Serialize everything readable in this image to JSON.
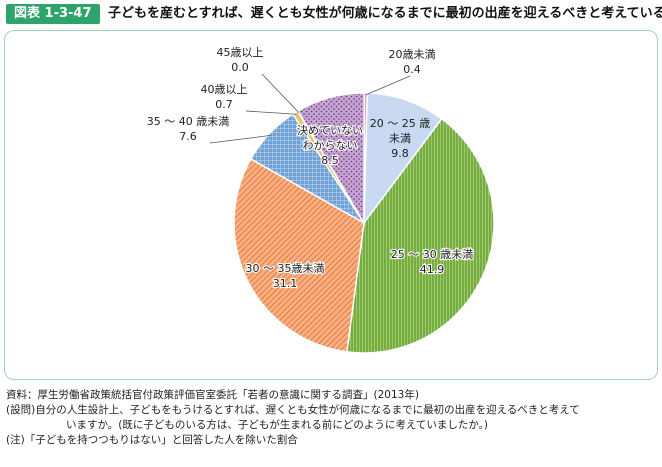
{
  "figure": {
    "tag": "図表 1-3-47",
    "title": "子どもを産むとすれば、遅くとも女性が何歳になるまでに最初の出産を迎えるべきと考えているか"
  },
  "chart_data": {
    "type": "pie",
    "title": "",
    "unit": "%",
    "slices": [
      {
        "label": "20歳未満",
        "value": 0.4,
        "value_text": "0.4",
        "color": "#e9a0b8",
        "pattern": "solid"
      },
      {
        "label": "20 ～ 25 歳未満",
        "value": 9.8,
        "value_text": "9.8",
        "color": "#c9d9f2",
        "pattern": "solid"
      },
      {
        "label": "25 ～ 30 歳未満",
        "value": 41.9,
        "value_text": "41.9",
        "color": "#7cb342",
        "pattern": "vertical-lines"
      },
      {
        "label": "30 ～ 35歳未満",
        "value": 31.1,
        "value_text": "31.1",
        "color": "#f39a5f",
        "pattern": "diagonal-lines"
      },
      {
        "label": "35 ～ 40 歳未満",
        "value": 7.6,
        "value_text": "7.6",
        "color": "#4a86c5",
        "pattern": "grid"
      },
      {
        "label": "40歳以上",
        "value": 0.7,
        "value_text": "0.7",
        "color": "#e9c36a",
        "pattern": "solid"
      },
      {
        "label": "45歳以上",
        "value": 0.0,
        "value_text": "0.0",
        "color": "#9e9e9e",
        "pattern": "solid"
      },
      {
        "label": "決めていない・わからない",
        "value": 8.5,
        "value_text": "8.5",
        "color": "#b58ac4",
        "pattern": "dots"
      }
    ],
    "legend": "none"
  },
  "notes": {
    "source_key": "資料：",
    "source": "厚生労働省政策統括官付政策評価官室委託「若者の意識に関する調査」(2013年)",
    "question_key": "(設問)",
    "question_line1": "自分の人生設計上、子どもをもうけるとすれば、遅くとも女性が何歳になるまでに最初の出産を迎えるべきと考えて",
    "question_line2": "いますか。(既に子どものいる方は、子どもが生まれる前にどのように考えていましたか。)",
    "note_key": "(注)",
    "note": "「子どもを持つつもりはない」と回答した人を除いた割合"
  }
}
